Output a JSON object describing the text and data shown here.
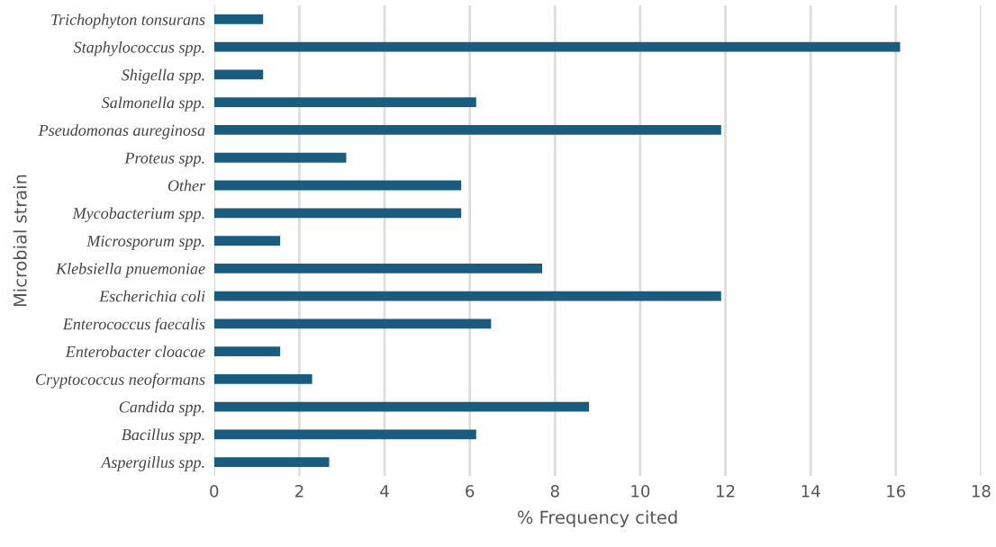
{
  "chart_data": {
    "type": "bar",
    "orientation": "horizontal",
    "categories": [
      "Trichophyton tonsurans",
      "Staphylococcus spp.",
      "Shigella spp.",
      "Salmonella spp.",
      "Pseudomonas aureginosa",
      "Proteus spp.",
      "Other",
      "Mycobacterium spp.",
      "Microsporum spp.",
      "Klebsiella pnuemoniae",
      "Escherichia coli",
      "Enterococcus faecalis",
      "Enterobacter cloacae",
      "Cryptococcus neoformans",
      "Candida spp.",
      "Bacillus spp.",
      "Aspergillus spp."
    ],
    "values": [
      1.15,
      16.1,
      1.15,
      6.15,
      11.9,
      3.1,
      5.8,
      5.8,
      1.55,
      7.7,
      11.9,
      6.5,
      1.55,
      2.3,
      8.8,
      6.15,
      2.7
    ],
    "color": "#1a5c80",
    "xlabel": "% Frequency cited",
    "ylabel": "Microbial strain",
    "xlim": [
      0,
      18
    ],
    "xticks": [
      0,
      2,
      4,
      6,
      8,
      10,
      12,
      14,
      16,
      18
    ],
    "grid": "x"
  }
}
